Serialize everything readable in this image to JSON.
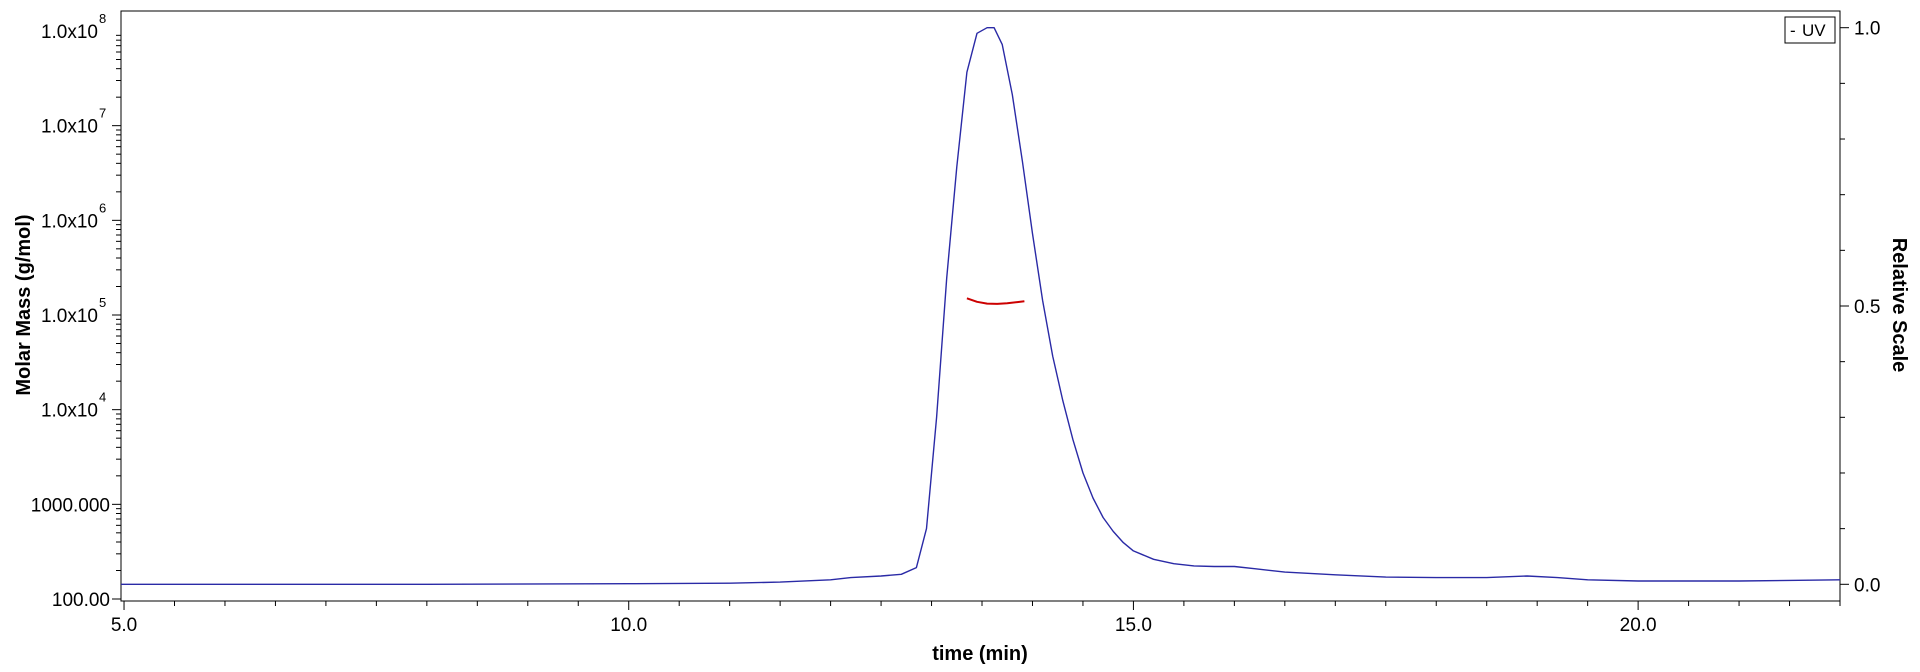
{
  "chart_data": {
    "type": "line",
    "xlabel": "time (min)",
    "ylabel_left": "Molar Mass (g/mol)",
    "ylabel_right": "Relative Scale",
    "xlim": [
      4.97,
      22.0
    ],
    "ylim_left": [
      100,
      100000000
    ],
    "ylim_right": [
      -0.03,
      1.03
    ],
    "left_scale": "log",
    "grid": false,
    "legend_position": "top-right",
    "x_ticks": [
      {
        "value": 5.0,
        "label": "5.0"
      },
      {
        "value": 10.0,
        "label": "10.0"
      },
      {
        "value": 15.0,
        "label": "15.0"
      },
      {
        "value": 20.0,
        "label": "20.0"
      }
    ],
    "y_left_ticks": [
      {
        "value": 100,
        "label": "100.00",
        "exp": ""
      },
      {
        "value": 1000,
        "label": "1000.000",
        "exp": ""
      },
      {
        "value": 10000,
        "label": "1.0x10",
        "exp": "4"
      },
      {
        "value": 100000,
        "label": "1.0x10",
        "exp": "5"
      },
      {
        "value": 1000000,
        "label": "1.0x10",
        "exp": "6"
      },
      {
        "value": 10000000,
        "label": "1.0x10",
        "exp": "7"
      },
      {
        "value": 100000000,
        "label": "1.0x10",
        "exp": "8"
      }
    ],
    "y_right_ticks": [
      {
        "value": 0.0,
        "label": "0.0"
      },
      {
        "value": 0.5,
        "label": "0.5"
      },
      {
        "value": 1.0,
        "label": "1.0"
      }
    ],
    "series": [
      {
        "name": "UV",
        "axis": "right",
        "color": "#2a2aa6",
        "x": [
          4.97,
          6.0,
          8.0,
          10.0,
          11.0,
          11.5,
          12.0,
          12.2,
          12.5,
          12.7,
          12.85,
          12.95,
          13.05,
          13.15,
          13.25,
          13.35,
          13.45,
          13.55,
          13.62,
          13.7,
          13.8,
          13.9,
          14.0,
          14.1,
          14.2,
          14.3,
          14.4,
          14.5,
          14.6,
          14.7,
          14.8,
          14.9,
          15.0,
          15.2,
          15.4,
          15.6,
          15.8,
          16.0,
          16.2,
          16.5,
          17.0,
          17.5,
          18.0,
          18.5,
          18.9,
          19.2,
          19.5,
          20.0,
          21.0,
          22.0
        ],
        "y": [
          0.0,
          0.0,
          0.0,
          0.001,
          0.002,
          0.004,
          0.008,
          0.012,
          0.015,
          0.018,
          0.03,
          0.1,
          0.3,
          0.55,
          0.75,
          0.92,
          0.99,
          1.0,
          1.0,
          0.97,
          0.88,
          0.76,
          0.63,
          0.51,
          0.41,
          0.33,
          0.26,
          0.2,
          0.155,
          0.12,
          0.095,
          0.075,
          0.06,
          0.045,
          0.037,
          0.033,
          0.032,
          0.032,
          0.028,
          0.022,
          0.017,
          0.013,
          0.012,
          0.012,
          0.015,
          0.012,
          0.008,
          0.006,
          0.006,
          0.008
        ]
      },
      {
        "name": "",
        "axis": "left",
        "color": "#cc0000",
        "x": [
          13.35,
          13.45,
          13.55,
          13.65,
          13.75,
          13.85,
          13.92
        ],
        "y": [
          150000,
          138000,
          132000,
          131000,
          133000,
          137000,
          140000
        ]
      }
    ]
  },
  "legend": {
    "entries": [
      {
        "label": "UV",
        "marker": "-"
      }
    ]
  }
}
